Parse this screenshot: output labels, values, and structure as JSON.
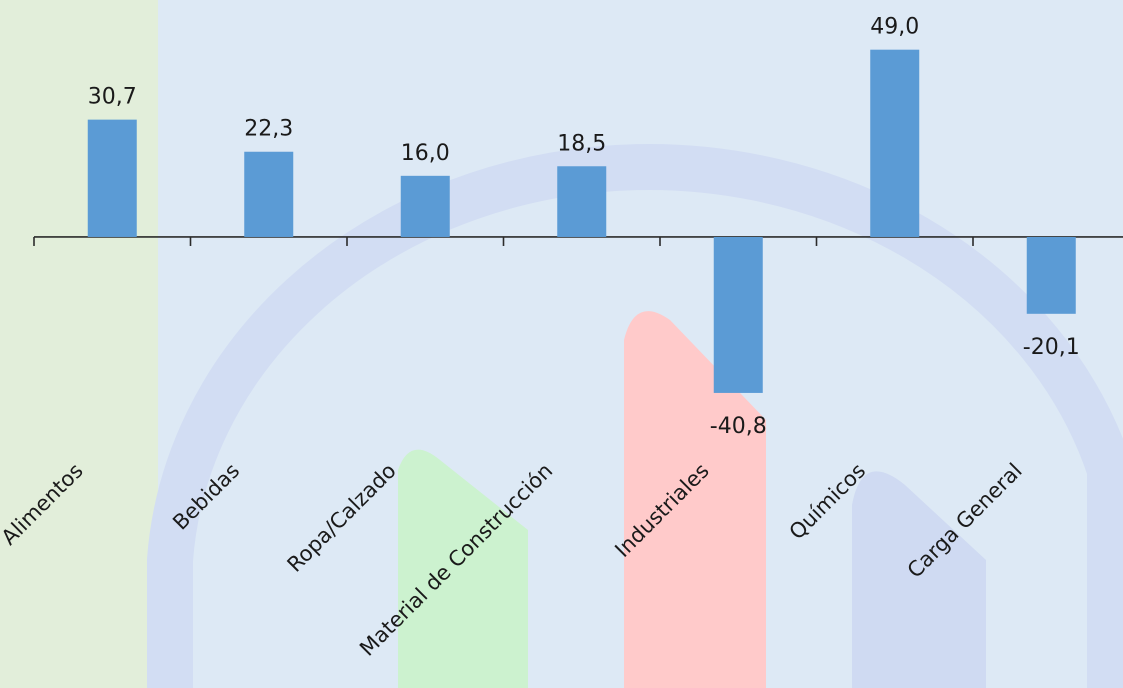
{
  "chart_data": {
    "type": "bar",
    "categories": [
      "Alimentos",
      "Bebidas",
      "Ropa/Calzado",
      "Material de Construcción",
      "Industriales",
      "Químicos",
      "Carga General"
    ],
    "values": [
      30.7,
      22.3,
      16.0,
      18.5,
      -40.8,
      49.0,
      -20.1
    ],
    "value_labels": [
      "30,7",
      "22,3",
      "16,0",
      "18,5",
      "-40,8",
      "49,0",
      "-20,1"
    ],
    "ylim": [
      -118,
      62
    ],
    "grid": false,
    "legend": "none",
    "bar_color": "#5b9bd5",
    "axis_color": "#2b2b2b",
    "label_color": "#1a1a1a"
  },
  "decor": {
    "page_bg": "#dde9f5",
    "highlight_column": "#e2eeda",
    "ring_color": "#d2ddf3",
    "green_shape": "#ccf2cf",
    "red_shape": "#ffcaca",
    "blue_shape": "#cfdaf2"
  }
}
